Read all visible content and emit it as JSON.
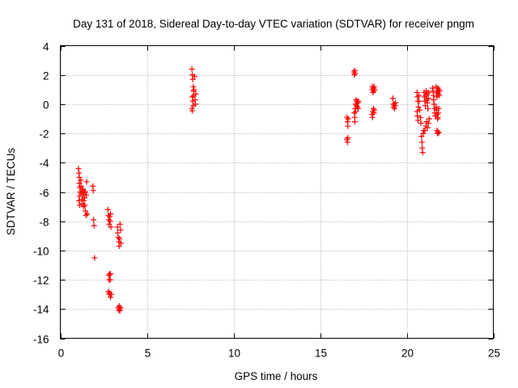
{
  "chart_data": {
    "type": "scatter",
    "title": "Day 131 of 2018, Sidereal Day-to-day VTEC variation (SDTVAR) for receiver pngm",
    "xlabel": "GPS time / hours",
    "ylabel": "SDTVAR / TECUs",
    "xlim": [
      0,
      25
    ],
    "ylim": [
      -16,
      4
    ],
    "xticks": [
      0,
      5,
      10,
      15,
      20,
      25
    ],
    "yticks": [
      -16,
      -14,
      -12,
      -10,
      -8,
      -6,
      -4,
      -2,
      0,
      2,
      4
    ],
    "grid": true,
    "marker": "+",
    "color": "#ff0000",
    "series": [
      {
        "name": "SDTVAR",
        "points": [
          [
            1.05,
            -4.4
          ],
          [
            1.08,
            -4.7
          ],
          [
            1.1,
            -5.0
          ],
          [
            1.1,
            -5.4
          ],
          [
            1.12,
            -5.7
          ],
          [
            1.15,
            -6.0
          ],
          [
            1.1,
            -6.3
          ],
          [
            1.08,
            -6.6
          ],
          [
            1.12,
            -6.9
          ],
          [
            1.18,
            -5.2
          ],
          [
            1.2,
            -5.6
          ],
          [
            1.22,
            -6.1
          ],
          [
            1.25,
            -6.5
          ],
          [
            1.25,
            -6.8
          ],
          [
            1.3,
            -5.8
          ],
          [
            1.32,
            -6.2
          ],
          [
            1.35,
            -6.6
          ],
          [
            1.35,
            -7.0
          ],
          [
            1.38,
            -6.0
          ],
          [
            1.4,
            -6.4
          ],
          [
            1.42,
            -6.9
          ],
          [
            1.45,
            -7.3
          ],
          [
            1.48,
            -7.6
          ],
          [
            1.5,
            -6.2
          ],
          [
            1.52,
            -5.3
          ],
          [
            1.55,
            -7.5
          ],
          [
            1.45,
            -6.0
          ],
          [
            1.28,
            -5.9
          ],
          [
            1.88,
            -5.6
          ],
          [
            1.9,
            -5.9
          ],
          [
            1.92,
            -7.9
          ],
          [
            1.95,
            -8.3
          ],
          [
            1.98,
            -10.5
          ],
          [
            2.75,
            -7.2
          ],
          [
            2.78,
            -7.6
          ],
          [
            2.8,
            -7.9
          ],
          [
            2.82,
            -8.2
          ],
          [
            2.85,
            -7.7
          ],
          [
            2.88,
            -8.0
          ],
          [
            2.9,
            -7.5
          ],
          [
            2.92,
            -8.4
          ],
          [
            2.8,
            -11.7
          ],
          [
            2.82,
            -12.0
          ],
          [
            2.85,
            -11.6
          ],
          [
            2.88,
            -12.0
          ],
          [
            2.9,
            -11.6
          ],
          [
            2.78,
            -12.8
          ],
          [
            2.82,
            -13.0
          ],
          [
            2.85,
            -12.9
          ],
          [
            2.9,
            -13.2
          ],
          [
            2.95,
            -13.0
          ],
          [
            3.3,
            -8.4
          ],
          [
            3.32,
            -8.8
          ],
          [
            3.35,
            -9.1
          ],
          [
            3.38,
            -9.4
          ],
          [
            3.4,
            -9.7
          ],
          [
            3.42,
            -9.2
          ],
          [
            3.45,
            -8.2
          ],
          [
            3.48,
            -8.6
          ],
          [
            3.5,
            -9.5
          ],
          [
            3.35,
            -13.9
          ],
          [
            3.38,
            -14.1
          ],
          [
            3.4,
            -13.8
          ],
          [
            3.42,
            -14.0
          ],
          [
            3.45,
            -14.1
          ],
          [
            3.48,
            -13.9
          ],
          [
            7.6,
            2.4
          ],
          [
            7.62,
            2.0
          ],
          [
            7.65,
            1.7
          ],
          [
            7.68,
            1.2
          ],
          [
            7.7,
            0.9
          ],
          [
            7.62,
            0.5
          ],
          [
            7.65,
            0.2
          ],
          [
            7.68,
            -0.1
          ],
          [
            7.6,
            -0.3
          ],
          [
            7.62,
            -0.45
          ],
          [
            7.7,
            0.6
          ],
          [
            7.72,
            1.0
          ],
          [
            7.75,
            1.9
          ],
          [
            7.78,
            0.3
          ],
          [
            7.8,
            0.0
          ],
          [
            7.82,
            0.7
          ],
          [
            16.55,
            -0.9
          ],
          [
            16.58,
            -1.2
          ],
          [
            16.6,
            -1.5
          ],
          [
            16.62,
            -1.0
          ],
          [
            16.55,
            -2.4
          ],
          [
            16.58,
            -2.6
          ],
          [
            16.6,
            -2.3
          ],
          [
            16.95,
            2.2
          ],
          [
            16.98,
            2.0
          ],
          [
            17.0,
            2.3
          ],
          [
            17.02,
            2.1
          ],
          [
            16.98,
            -0.6
          ],
          [
            17.0,
            -0.9
          ],
          [
            17.0,
            -1.2
          ],
          [
            17.02,
            -0.3
          ],
          [
            17.05,
            0.0
          ],
          [
            17.08,
            0.3
          ],
          [
            17.1,
            -0.1
          ],
          [
            17.12,
            0.2
          ],
          [
            17.15,
            -0.2
          ],
          [
            17.18,
            0.1
          ],
          [
            17.2,
            -0.3
          ],
          [
            17.22,
            0.2
          ],
          [
            17.05,
            -0.5
          ],
          [
            18.0,
            1.0
          ],
          [
            18.02,
            1.2
          ],
          [
            18.05,
            0.8
          ],
          [
            18.08,
            1.1
          ],
          [
            18.1,
            0.9
          ],
          [
            18.12,
            1.2
          ],
          [
            18.15,
            1.0
          ],
          [
            18.0,
            -0.7
          ],
          [
            18.02,
            -0.9
          ],
          [
            18.05,
            -0.5
          ],
          [
            18.08,
            -0.3
          ],
          [
            18.1,
            -0.6
          ],
          [
            18.12,
            -0.4
          ],
          [
            19.2,
            0.4
          ],
          [
            19.22,
            0.0
          ],
          [
            19.25,
            -0.2
          ],
          [
            19.28,
            0.0
          ],
          [
            19.3,
            -0.3
          ],
          [
            19.32,
            -0.1
          ],
          [
            19.35,
            0.1
          ],
          [
            20.6,
            0.8
          ],
          [
            20.62,
            0.5
          ],
          [
            20.65,
            0.2
          ],
          [
            20.68,
            -0.2
          ],
          [
            20.6,
            -0.5
          ],
          [
            20.62,
            -0.8
          ],
          [
            20.65,
            -1.1
          ],
          [
            20.7,
            0.6
          ],
          [
            20.72,
            0.2
          ],
          [
            20.75,
            -0.4
          ],
          [
            20.8,
            -0.9
          ],
          [
            20.82,
            -1.3
          ],
          [
            20.85,
            -2.2
          ],
          [
            20.88,
            -2.6
          ],
          [
            20.9,
            -3.0
          ],
          [
            20.92,
            -3.3
          ],
          [
            20.95,
            -2.0
          ],
          [
            20.98,
            -1.8
          ],
          [
            21.0,
            0.8
          ],
          [
            21.02,
            0.5
          ],
          [
            21.05,
            0.2
          ],
          [
            21.08,
            -0.1
          ],
          [
            21.1,
            0.6
          ],
          [
            21.12,
            0.9
          ],
          [
            21.15,
            0.3
          ],
          [
            21.18,
            0.7
          ],
          [
            21.2,
            0.1
          ],
          [
            21.22,
            -0.3
          ],
          [
            21.25,
            0.4
          ],
          [
            21.28,
            0.8
          ],
          [
            21.05,
            -1.8
          ],
          [
            21.1,
            -1.5
          ],
          [
            21.15,
            -1.2
          ],
          [
            21.2,
            -1.6
          ],
          [
            21.25,
            -1.3
          ],
          [
            21.3,
            -1.0
          ],
          [
            21.5,
            1.1
          ],
          [
            21.52,
            0.9
          ],
          [
            21.55,
            0.6
          ],
          [
            21.55,
            0.3
          ],
          [
            21.58,
            0.0
          ],
          [
            21.6,
            -0.3
          ],
          [
            21.62,
            -0.6
          ],
          [
            21.65,
            -0.8
          ],
          [
            21.7,
            1.2
          ],
          [
            21.72,
            0.8
          ],
          [
            21.75,
            0.5
          ],
          [
            21.78,
            0.9
          ],
          [
            21.8,
            1.1
          ],
          [
            21.82,
            0.7
          ],
          [
            21.85,
            1.0
          ],
          [
            21.88,
            0.6
          ],
          [
            21.9,
            0.9
          ],
          [
            21.7,
            -0.2
          ],
          [
            21.72,
            -0.4
          ],
          [
            21.75,
            -0.7
          ],
          [
            21.78,
            -1.0
          ],
          [
            21.8,
            -0.9
          ],
          [
            21.82,
            -0.6
          ],
          [
            21.85,
            -0.3
          ],
          [
            21.75,
            -1.8
          ],
          [
            21.78,
            -2.0
          ],
          [
            21.8,
            -1.9
          ],
          [
            21.85,
            -1.95
          ]
        ]
      }
    ]
  }
}
